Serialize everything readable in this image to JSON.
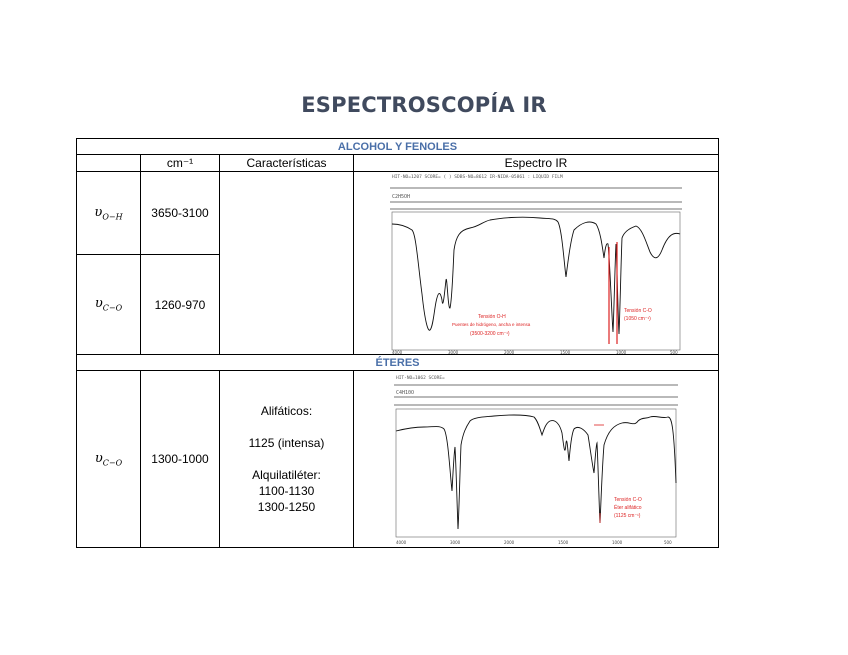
{
  "title": "ESPECTROSCOPÍA IR",
  "sections": {
    "alcohol": "ALCOHOL Y FENOLES",
    "eteres": "ÉTERES"
  },
  "headers": {
    "blank": "",
    "cm": "cm⁻¹",
    "caracteristicas": "Características",
    "espectro": "Espectro IR"
  },
  "alcohol_rows": [
    {
      "symbol": "υ",
      "sub": "O−H",
      "range": "3650-3100"
    },
    {
      "symbol": "υ",
      "sub": "C−O",
      "range": "1260-970"
    }
  ],
  "eter_row": {
    "symbol": "υ",
    "sub": "C−O",
    "range": "1300-1000",
    "chars": [
      "Alifáticos:",
      "",
      "1125 (intensa)",
      "",
      "Alquilatiléter:",
      "1100-1130",
      "1300-1250"
    ]
  },
  "spectrum1": {
    "header_text": "HIT-NO=1207  SCORE=  ( )  SDBS-NO=8612  IR-NIDA-05861 : LIQUID FILM",
    "header_text2": "C2H5OH",
    "annotation_oh": [
      "Tensión O-H",
      "Puentes de hidrógeno, ancha e intensa",
      "(3500-3200 cm⁻¹)"
    ],
    "annotation_co": [
      "Tensión C-O",
      "(1050 cm⁻¹)"
    ],
    "axis_ticks": [
      "4000",
      "3000",
      "2000",
      "1500",
      "1000",
      "500"
    ]
  },
  "spectrum2": {
    "header_text": "HIT-NO=1062  SCORE=",
    "header_text2": "C4H10O",
    "annotation_co": [
      "Tensión C-O",
      "Éter alifático",
      "(1125 cm⁻¹)"
    ],
    "axis_ticks": [
      "4000",
      "3000",
      "2000",
      "1500",
      "1000",
      "500"
    ]
  }
}
